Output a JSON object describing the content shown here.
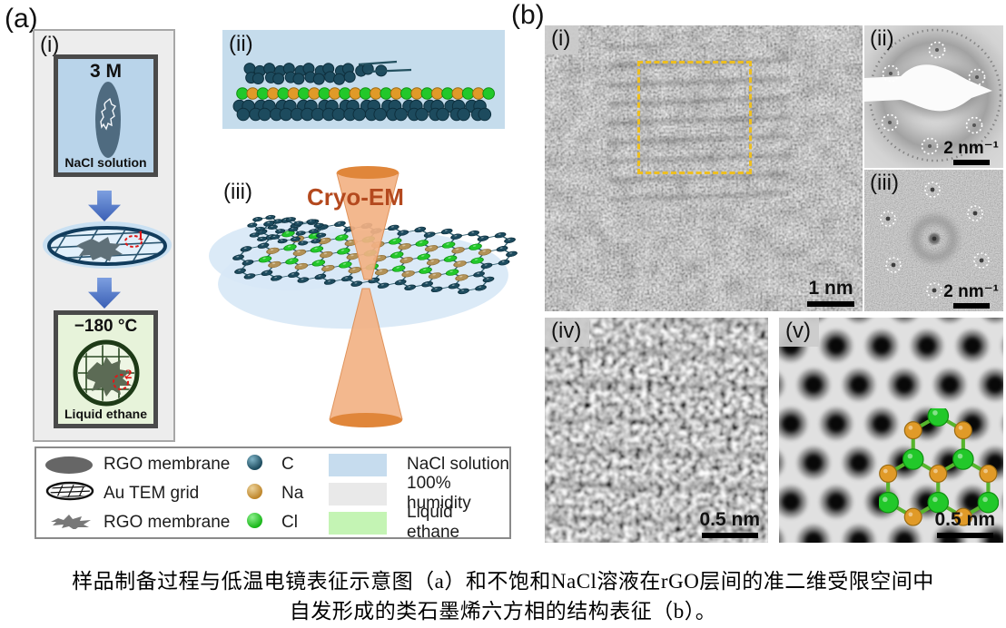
{
  "panel_a": {
    "label": "(a)",
    "step1": {
      "label": "(i)",
      "vial_title": "3 M",
      "vial_caption": "NaCl solution",
      "marker": "1"
    },
    "freeze": {
      "title": "−180 °C",
      "caption": "Liquid ethane",
      "marker": "2"
    },
    "sub_ii": {
      "label": "(ii)"
    },
    "sub_iii": {
      "label": "(iii)",
      "beam_label": "Cryo-EM"
    }
  },
  "legend": {
    "shapes": [
      {
        "icon": "rgo-membrane-ellipse-icon",
        "label": "RGO membrane"
      },
      {
        "icon": "au-tem-grid-icon",
        "label": "Au TEM grid"
      },
      {
        "icon": "rgo-membrane-flake-icon",
        "label": "RGO membrane"
      }
    ],
    "atoms": [
      {
        "symbol": "C",
        "color": "#1d4b5e"
      },
      {
        "symbol": "Na",
        "color": "#bd8428"
      },
      {
        "symbol": "Cl",
        "color": "#17b517"
      }
    ],
    "media": [
      {
        "label": "NaCl solution",
        "color": "#c6dcee"
      },
      {
        "label": "100% humidity",
        "color": "#e9e9e9"
      },
      {
        "label": "Liquid ethane",
        "color": "#c4f4b4"
      }
    ]
  },
  "panel_b": {
    "label": "(b)",
    "sub_i": {
      "label": "(i)",
      "scale": "1 nm"
    },
    "sub_ii": {
      "label": "(ii)",
      "scale": "2 nm⁻¹"
    },
    "sub_iii": {
      "label": "(iii)",
      "scale": "2 nm⁻¹"
    },
    "sub_iv": {
      "label": "(iv)",
      "scale": "0.5 nm"
    },
    "sub_v": {
      "label": "(v)",
      "scale": "0.5 nm"
    }
  },
  "caption": {
    "line1": "样品制备过程与低温电镜表征示意图（a）和不饱和NaCl溶液在rGO层间的准二维受限空间中",
    "line2": "自发形成的类石墨烯六方相的结构表征（b）。"
  }
}
